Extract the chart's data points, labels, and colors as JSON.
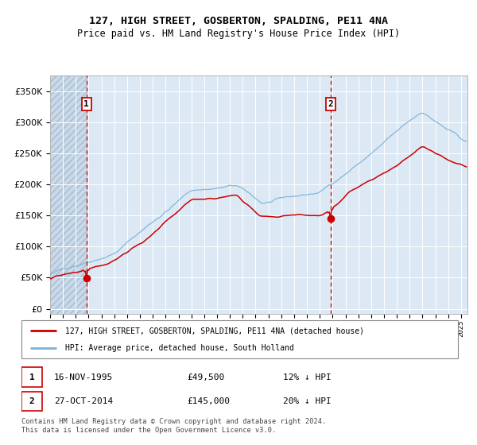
{
  "title": "127, HIGH STREET, GOSBERTON, SPALDING, PE11 4NA",
  "subtitle": "Price paid vs. HM Land Registry's House Price Index (HPI)",
  "legend_line1": "127, HIGH STREET, GOSBERTON, SPALDING, PE11 4NA (detached house)",
  "legend_line2": "HPI: Average price, detached house, South Holland",
  "point1_date": "16-NOV-1995",
  "point1_price": 49500,
  "point1_note": "12% ↓ HPI",
  "point2_date": "27-OCT-2014",
  "point2_price": 145000,
  "point2_note": "20% ↓ HPI",
  "hpi_color": "#7ab0d8",
  "price_color": "#cc0000",
  "bg_color": "#dce9f5",
  "vline_color": "#cc0000",
  "grid_color": "#ffffff",
  "yticks": [
    0,
    50000,
    100000,
    150000,
    200000,
    250000,
    300000,
    350000
  ],
  "ylim": [
    -8000,
    375000
  ],
  "xlim_start": 1993.0,
  "xlim_end": 2025.5,
  "footnote": "Contains HM Land Registry data © Crown copyright and database right 2024.\nThis data is licensed under the Open Government Licence v3.0."
}
